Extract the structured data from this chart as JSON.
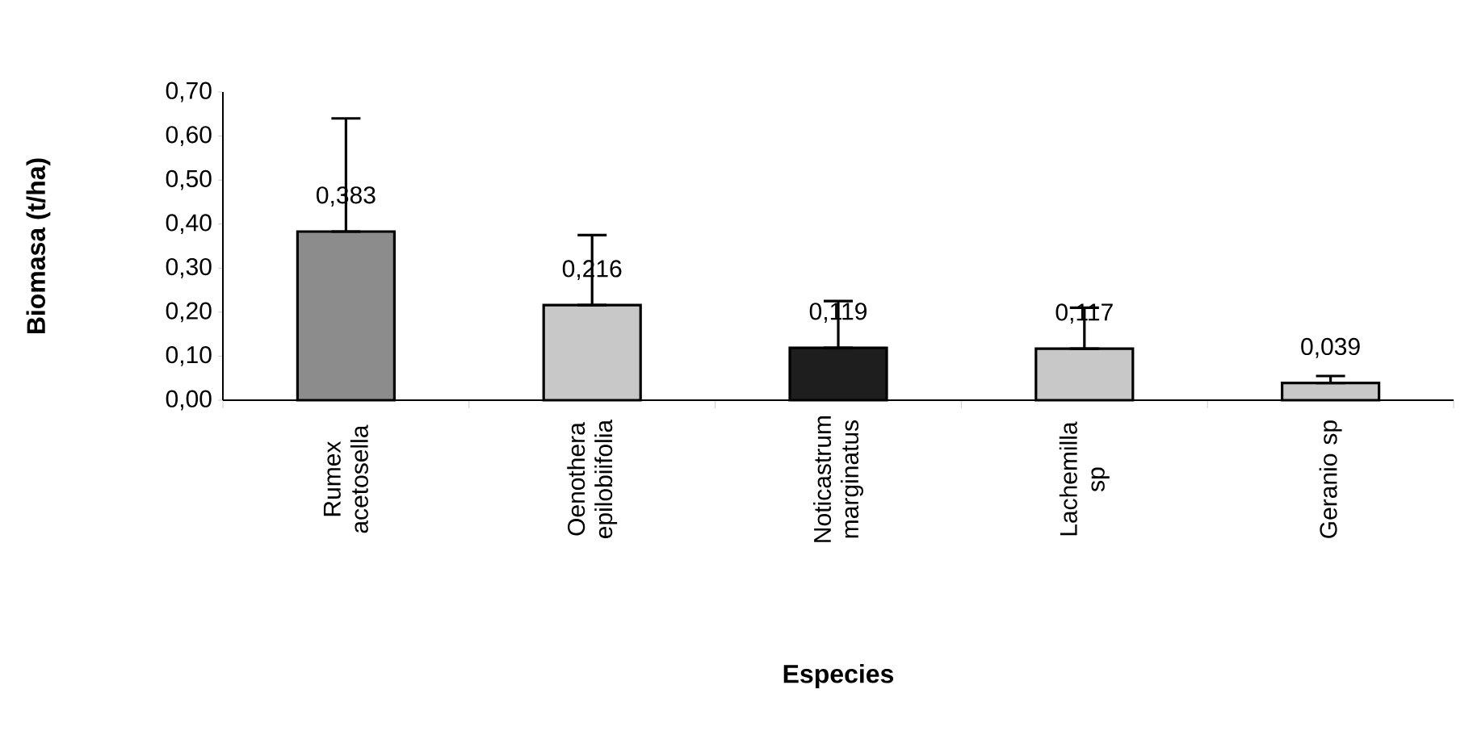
{
  "chart_data": {
    "type": "bar",
    "xlabel": "Especies",
    "ylabel": "Biomasa (t/ha)",
    "categories": [
      "Rumex acetosella",
      "Oenothera epilobiifolia",
      "Noticastrum marginatus",
      "Lachemilla sp",
      "Geranio sp"
    ],
    "values": [
      0.383,
      0.216,
      0.119,
      0.117,
      0.039
    ],
    "value_labels": [
      "0,383",
      "0,216",
      "0,119",
      "0,117",
      "0,039"
    ],
    "errors": [
      [
        0.383,
        0.64
      ],
      [
        0.216,
        0.375
      ],
      [
        0.119,
        0.225
      ],
      [
        0.117,
        0.21
      ],
      [
        0.039,
        0.055
      ]
    ],
    "colors": [
      "#8c8c8c",
      "#c8c8c8",
      "#1e1e1e",
      "#c8c8c8",
      "#c8c8c8"
    ],
    "ylim": [
      0,
      0.7
    ],
    "yticks": [
      {
        "value": 0,
        "label": "0,00"
      },
      {
        "value": 0.1,
        "label": "0,10"
      },
      {
        "value": 0.2,
        "label": "0,20"
      },
      {
        "value": 0.3,
        "label": "0,30"
      },
      {
        "value": 0.4,
        "label": "0,40"
      },
      {
        "value": 0.5,
        "label": "0,50"
      },
      {
        "value": 0.6,
        "label": "0,60"
      },
      {
        "value": 0.7,
        "label": "0,70"
      }
    ],
    "grid": false
  }
}
